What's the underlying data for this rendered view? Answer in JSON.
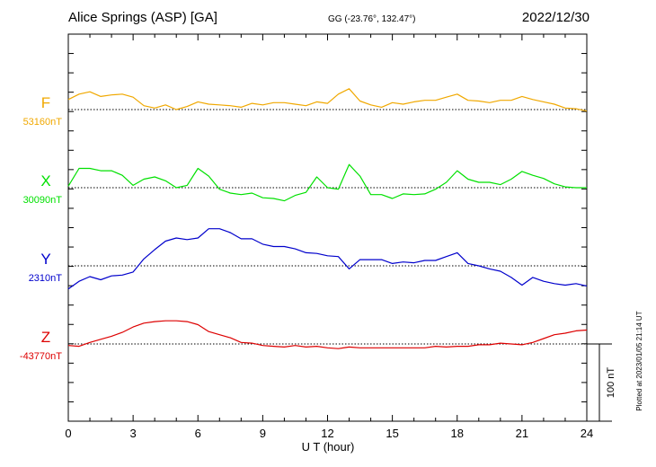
{
  "header": {
    "station": "Alice Springs (ASP)  [GA]",
    "coords": "GG (-23.76°, 132.47°)",
    "date": "2022/12/30"
  },
  "footer": {
    "plotted": "Plotted at 2023/01/05 21:14 UT"
  },
  "scale_label": "100 nT",
  "colors": {
    "F": "#f0a800",
    "X": "#00e000",
    "Y": "#0000cc",
    "Z": "#dd0000"
  },
  "chart_data": {
    "type": "line",
    "xlabel": "U T (hour)",
    "xlim": [
      0,
      24
    ],
    "xticks": [
      "0",
      "3",
      "6",
      "9",
      "12",
      "15",
      "18",
      "21",
      "24"
    ],
    "scale_nT": 100,
    "series": [
      {
        "name": "F",
        "baseline_label": "53160nT",
        "baseline_nT": 53160,
        "x": [
          0,
          0.5,
          1,
          1.5,
          2,
          2.5,
          3,
          3.5,
          4,
          4.5,
          5,
          5.5,
          6,
          6.5,
          7,
          7.5,
          8,
          8.5,
          9,
          9.5,
          10,
          10.5,
          11,
          11.5,
          12,
          12.5,
          13,
          13.5,
          14,
          14.5,
          15,
          15.5,
          16,
          16.5,
          17,
          17.5,
          18,
          18.5,
          19,
          19.5,
          20,
          20.5,
          21,
          21.5,
          22,
          22.5,
          23,
          23.5,
          24
        ],
        "y": [
          53173,
          53180,
          53183,
          53177,
          53179,
          53180,
          53176,
          53165,
          53162,
          53166,
          53160,
          53164,
          53170,
          53167,
          53166,
          53165,
          53163,
          53168,
          53166,
          53169,
          53169,
          53167,
          53165,
          53170,
          53168,
          53180,
          53187,
          53171,
          53166,
          53163,
          53169,
          53167,
          53170,
          53172,
          53172,
          53176,
          53180,
          53172,
          53171,
          53169,
          53172,
          53172,
          53177,
          53173,
          53170,
          53167,
          53162,
          53161,
          53158
        ]
      },
      {
        "name": "X",
        "baseline_label": "30090nT",
        "baseline_nT": 30090,
        "x": [
          0,
          0.5,
          1,
          1.5,
          2,
          2.5,
          3,
          3.5,
          4,
          4.5,
          5,
          5.5,
          6,
          6.5,
          7,
          7.5,
          8,
          8.5,
          9,
          9.5,
          10,
          10.5,
          11,
          11.5,
          12,
          12.5,
          13,
          13.5,
          14,
          14.5,
          15,
          15.5,
          16,
          16.5,
          17,
          17.5,
          18,
          18.5,
          19,
          19.5,
          20,
          20.5,
          21,
          21.5,
          22,
          22.5,
          23,
          23.5,
          24
        ],
        "y": [
          30092,
          30115,
          30115,
          30112,
          30112,
          30106,
          30093,
          30101,
          30104,
          30099,
          30090,
          30093,
          30115,
          30105,
          30088,
          30083,
          30081,
          30083,
          30077,
          30076,
          30073,
          30080,
          30084,
          30104,
          30090,
          30088,
          30120,
          30105,
          30081,
          30081,
          30076,
          30082,
          30081,
          30082,
          30088,
          30097,
          30112,
          30101,
          30097,
          30097,
          30094,
          30101,
          30111,
          30106,
          30102,
          30095,
          30091,
          30090,
          30090
        ]
      },
      {
        "name": "Y",
        "baseline_label": "2310nT",
        "baseline_nT": 2310,
        "x": [
          0,
          0.5,
          1,
          1.5,
          2,
          2.5,
          3,
          3.5,
          4,
          4.5,
          5,
          5.5,
          6,
          6.5,
          7,
          7.5,
          8,
          8.5,
          9,
          9.5,
          10,
          10.5,
          11,
          11.5,
          12,
          12.5,
          13,
          13.5,
          14,
          14.5,
          15,
          15.5,
          16,
          16.5,
          17,
          17.5,
          18,
          18.5,
          19,
          19.5,
          20,
          20.5,
          21,
          21.5,
          22,
          22.5,
          23,
          23.5,
          24
        ],
        "y": [
          2280,
          2290,
          2296,
          2292,
          2297,
          2298,
          2302,
          2319,
          2331,
          2342,
          2346,
          2344,
          2346,
          2358,
          2358,
          2353,
          2345,
          2345,
          2338,
          2335,
          2335,
          2332,
          2327,
          2326,
          2323,
          2322,
          2306,
          2318,
          2318,
          2318,
          2313,
          2315,
          2314,
          2317,
          2317,
          2322,
          2327,
          2313,
          2310,
          2306,
          2303,
          2295,
          2285,
          2295,
          2290,
          2287,
          2285,
          2287,
          2284
        ]
      },
      {
        "name": "Z",
        "baseline_label": "-43770nT",
        "baseline_nT": -43770,
        "x": [
          0,
          0.5,
          1,
          1.5,
          2,
          2.5,
          3,
          3.5,
          4,
          4.5,
          5,
          5.5,
          6,
          6.5,
          7,
          7.5,
          8,
          8.5,
          9,
          9.5,
          10,
          10.5,
          11,
          11.5,
          12,
          12.5,
          13,
          13.5,
          14,
          14.5,
          15,
          15.5,
          16,
          16.5,
          17,
          17.5,
          18,
          18.5,
          19,
          19.5,
          20,
          20.5,
          21,
          21.5,
          22,
          22.5,
          23,
          23.5,
          24
        ],
        "y": [
          -43772,
          -43773,
          -43768,
          -43764,
          -43760,
          -43755,
          -43748,
          -43743,
          -43741,
          -43740,
          -43740,
          -43741,
          -43745,
          -43754,
          -43758,
          -43762,
          -43768,
          -43769,
          -43772,
          -43773,
          -43774,
          -43772,
          -43774,
          -43773,
          -43775,
          -43776,
          -43774,
          -43775,
          -43775,
          -43775,
          -43775,
          -43775,
          -43775,
          -43775,
          -43773,
          -43774,
          -43773,
          -43773,
          -43771,
          -43771,
          -43769,
          -43770,
          -43771,
          -43768,
          -43763,
          -43758,
          -43756,
          -43753,
          -43752
        ]
      }
    ]
  }
}
